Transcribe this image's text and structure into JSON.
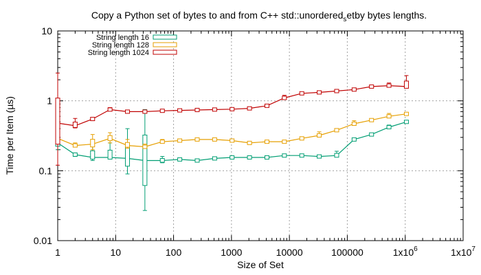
{
  "chart_data": {
    "type": "line",
    "title": "Copy a Python set of bytes to and from C++ std::unordered_setby bytes lengths.",
    "title_parts": [
      "Copy a Python set of bytes to and from C++ std::unordered",
      "s",
      "etby bytes lengths."
    ],
    "xlabel": "Size of Set",
    "ylabel": "Time per Item (µs)",
    "xscale": "log",
    "yscale": "log",
    "xlim": [
      1,
      10000000
    ],
    "ylim": [
      0.01,
      10
    ],
    "grid": true,
    "legend_position": "top-left",
    "x_ticks": [
      {
        "value": 1,
        "label": "1"
      },
      {
        "value": 10,
        "label": "10"
      },
      {
        "value": 100,
        "label": "100"
      },
      {
        "value": 1000,
        "label": "1000"
      },
      {
        "value": 10000,
        "label": "10000"
      },
      {
        "value": 100000,
        "label": "100000"
      },
      {
        "value": 1000000,
        "label": "1x10",
        "sup": "6"
      },
      {
        "value": 10000000,
        "label": "1x10",
        "sup": "7"
      }
    ],
    "y_ticks": [
      {
        "value": 0.01,
        "label": "0.01"
      },
      {
        "value": 0.1,
        "label": "0.1"
      },
      {
        "value": 1,
        "label": "1"
      },
      {
        "value": 10,
        "label": "10"
      }
    ],
    "series": [
      {
        "name": "String length 16",
        "color": "#009e73",
        "points": [
          {
            "x": 1,
            "y": 0.25,
            "lo": 0.2,
            "hi": 0.27
          },
          {
            "x": 2,
            "y": 0.17,
            "lo": 0.16,
            "hi": 0.18
          },
          {
            "x": 4,
            "y": 0.155,
            "lo": 0.14,
            "hi": 0.24
          },
          {
            "x": 8,
            "y": 0.155,
            "lo": 0.15,
            "hi": 0.25
          },
          {
            "x": 16,
            "y": 0.15,
            "lo": 0.09,
            "hi": 0.4
          },
          {
            "x": 32,
            "y": 0.14,
            "lo": 0.027,
            "hi": 0.75
          },
          {
            "x": 64,
            "y": 0.14,
            "lo": 0.13,
            "hi": 0.16
          },
          {
            "x": 128,
            "y": 0.145,
            "lo": 0.14,
            "hi": 0.15
          },
          {
            "x": 256,
            "y": 0.14,
            "lo": 0.135,
            "hi": 0.145
          },
          {
            "x": 512,
            "y": 0.15,
            "lo": 0.145,
            "hi": 0.155
          },
          {
            "x": 1024,
            "y": 0.155,
            "lo": 0.15,
            "hi": 0.16
          },
          {
            "x": 2048,
            "y": 0.155,
            "lo": 0.15,
            "hi": 0.16
          },
          {
            "x": 4096,
            "y": 0.155,
            "lo": 0.15,
            "hi": 0.16
          },
          {
            "x": 8192,
            "y": 0.165,
            "lo": 0.16,
            "hi": 0.17
          },
          {
            "x": 16384,
            "y": 0.165,
            "lo": 0.16,
            "hi": 0.17
          },
          {
            "x": 32768,
            "y": 0.16,
            "lo": 0.155,
            "hi": 0.165
          },
          {
            "x": 65536,
            "y": 0.165,
            "lo": 0.16,
            "hi": 0.19
          },
          {
            "x": 131072,
            "y": 0.28,
            "lo": 0.275,
            "hi": 0.285
          },
          {
            "x": 262144,
            "y": 0.33,
            "lo": 0.325,
            "hi": 0.335
          },
          {
            "x": 524288,
            "y": 0.42,
            "lo": 0.4,
            "hi": 0.45
          },
          {
            "x": 1048576,
            "y": 0.5,
            "lo": 0.49,
            "hi": 0.52
          }
        ]
      },
      {
        "name": "String length 128",
        "color": "#e69f00",
        "points": [
          {
            "x": 1,
            "y": 0.29,
            "lo": 0.27,
            "hi": 0.3
          },
          {
            "x": 2,
            "y": 0.23,
            "lo": 0.22,
            "hi": 0.25
          },
          {
            "x": 4,
            "y": 0.24,
            "lo": 0.2,
            "hi": 0.33
          },
          {
            "x": 8,
            "y": 0.29,
            "lo": 0.25,
            "hi": 0.35
          },
          {
            "x": 16,
            "y": 0.23,
            "lo": 0.21,
            "hi": 0.28
          },
          {
            "x": 32,
            "y": 0.22,
            "lo": 0.21,
            "hi": 0.24
          },
          {
            "x": 64,
            "y": 0.26,
            "lo": 0.25,
            "hi": 0.28
          },
          {
            "x": 128,
            "y": 0.27,
            "lo": 0.26,
            "hi": 0.28
          },
          {
            "x": 256,
            "y": 0.28,
            "lo": 0.275,
            "hi": 0.285
          },
          {
            "x": 512,
            "y": 0.28,
            "lo": 0.275,
            "hi": 0.29
          },
          {
            "x": 1024,
            "y": 0.27,
            "lo": 0.26,
            "hi": 0.28
          },
          {
            "x": 2048,
            "y": 0.25,
            "lo": 0.245,
            "hi": 0.26
          },
          {
            "x": 4096,
            "y": 0.26,
            "lo": 0.255,
            "hi": 0.265
          },
          {
            "x": 8192,
            "y": 0.26,
            "lo": 0.255,
            "hi": 0.27
          },
          {
            "x": 16384,
            "y": 0.29,
            "lo": 0.285,
            "hi": 0.3
          },
          {
            "x": 32768,
            "y": 0.32,
            "lo": 0.31,
            "hi": 0.36
          },
          {
            "x": 65536,
            "y": 0.38,
            "lo": 0.37,
            "hi": 0.39
          },
          {
            "x": 131072,
            "y": 0.47,
            "lo": 0.45,
            "hi": 0.52
          },
          {
            "x": 262144,
            "y": 0.53,
            "lo": 0.52,
            "hi": 0.55
          },
          {
            "x": 524288,
            "y": 0.6,
            "lo": 0.58,
            "hi": 0.66
          },
          {
            "x": 1048576,
            "y": 0.65,
            "lo": 0.63,
            "hi": 0.68
          }
        ]
      },
      {
        "name": "String length 1024",
        "color": "#c00000",
        "points": [
          {
            "x": 1,
            "y": 0.48,
            "lo": 0.12,
            "hi": 2.5
          },
          {
            "x": 2,
            "y": 0.44,
            "lo": 0.41,
            "hi": 0.56
          },
          {
            "x": 4,
            "y": 0.55,
            "lo": 0.53,
            "hi": 0.57
          },
          {
            "x": 8,
            "y": 0.75,
            "lo": 0.72,
            "hi": 0.8
          },
          {
            "x": 16,
            "y": 0.7,
            "lo": 0.69,
            "hi": 0.71
          },
          {
            "x": 32,
            "y": 0.7,
            "lo": 0.69,
            "hi": 0.72
          },
          {
            "x": 64,
            "y": 0.72,
            "lo": 0.71,
            "hi": 0.73
          },
          {
            "x": 128,
            "y": 0.73,
            "lo": 0.72,
            "hi": 0.74
          },
          {
            "x": 256,
            "y": 0.74,
            "lo": 0.73,
            "hi": 0.75
          },
          {
            "x": 512,
            "y": 0.75,
            "lo": 0.74,
            "hi": 0.76
          },
          {
            "x": 1024,
            "y": 0.76,
            "lo": 0.75,
            "hi": 0.77
          },
          {
            "x": 2048,
            "y": 0.78,
            "lo": 0.77,
            "hi": 0.79
          },
          {
            "x": 4096,
            "y": 0.85,
            "lo": 0.82,
            "hi": 0.88
          },
          {
            "x": 8192,
            "y": 1.1,
            "lo": 1.05,
            "hi": 1.2
          },
          {
            "x": 16384,
            "y": 1.28,
            "lo": 1.25,
            "hi": 1.31
          },
          {
            "x": 32768,
            "y": 1.32,
            "lo": 1.3,
            "hi": 1.35
          },
          {
            "x": 65536,
            "y": 1.38,
            "lo": 1.36,
            "hi": 1.45
          },
          {
            "x": 131072,
            "y": 1.45,
            "lo": 1.4,
            "hi": 1.5
          },
          {
            "x": 262144,
            "y": 1.6,
            "lo": 1.58,
            "hi": 1.62
          },
          {
            "x": 524288,
            "y": 1.65,
            "lo": 1.6,
            "hi": 1.8
          },
          {
            "x": 1048576,
            "y": 1.6,
            "lo": 1.55,
            "hi": 2.3
          }
        ]
      }
    ]
  }
}
